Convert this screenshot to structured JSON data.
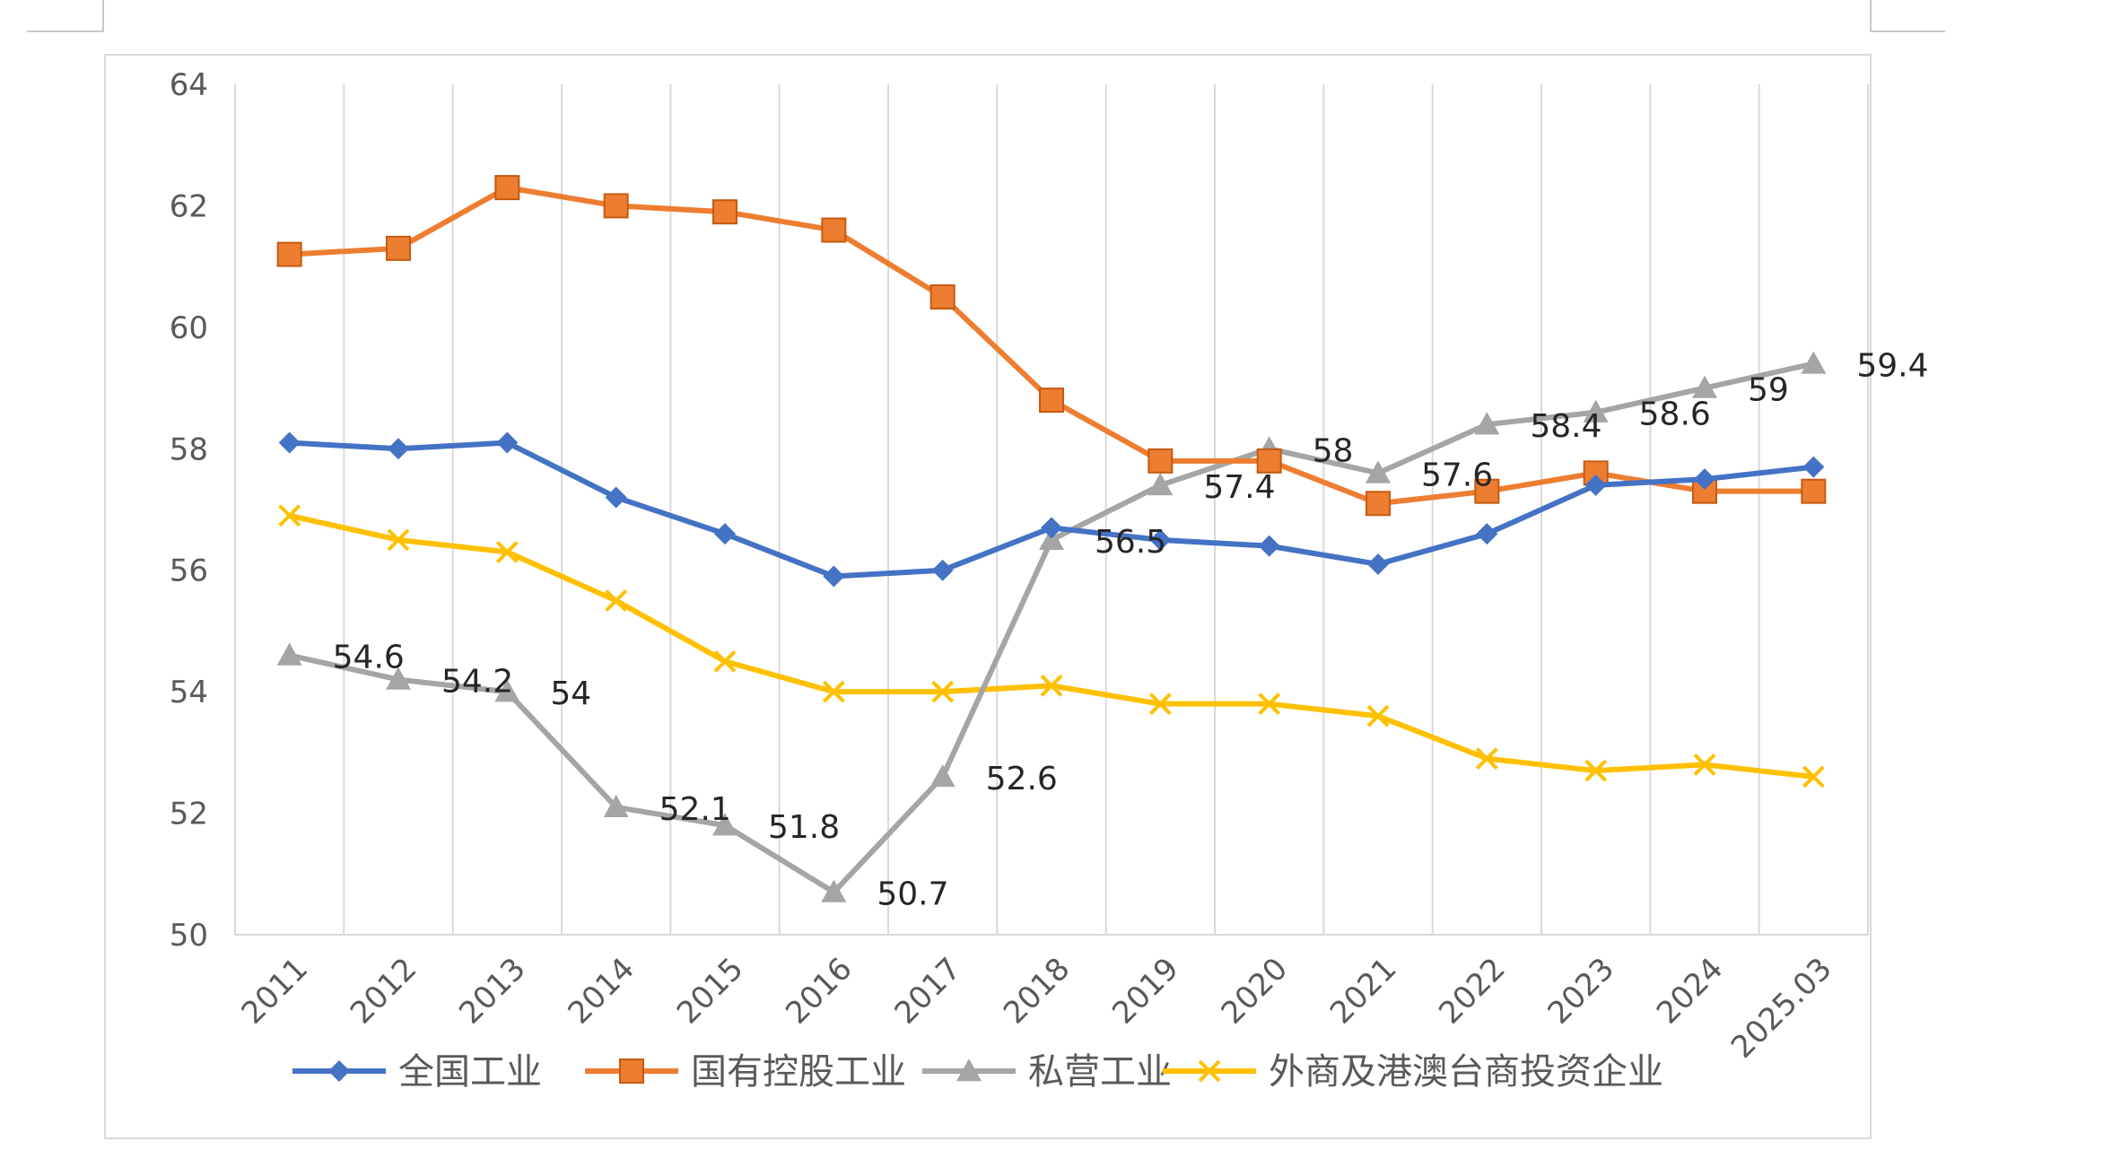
{
  "chart_data": {
    "type": "line",
    "title": "",
    "xlabel": "",
    "ylabel": "",
    "ylim": [
      50,
      64
    ],
    "yticks": [
      50,
      52,
      54,
      56,
      58,
      60,
      62,
      64
    ],
    "grid": "vertical",
    "legend_position": "bottom",
    "categories": [
      "2011",
      "2012",
      "2013",
      "2014",
      "2015",
      "2016",
      "2017",
      "2018",
      "2019",
      "2020",
      "2021",
      "2022",
      "2023",
      "2024",
      "2025.03"
    ],
    "series": [
      {
        "name": "全国工业",
        "color": "#4472C4",
        "marker": "diamond",
        "values": [
          58.1,
          58.0,
          58.1,
          57.2,
          56.6,
          55.9,
          56.0,
          56.7,
          56.5,
          56.4,
          56.1,
          56.6,
          57.4,
          57.5,
          57.7
        ]
      },
      {
        "name": "国有控股工业",
        "color": "#ED7D31",
        "marker": "square",
        "values": [
          61.2,
          61.3,
          62.3,
          62.0,
          61.9,
          61.6,
          60.5,
          58.8,
          57.8,
          57.8,
          57.1,
          57.3,
          57.6,
          57.3,
          57.3
        ]
      },
      {
        "name": "私营工业",
        "color": "#A5A5A5",
        "marker": "triangle",
        "values": [
          54.6,
          54.2,
          54.0,
          52.1,
          51.8,
          50.7,
          52.6,
          56.5,
          57.4,
          58.0,
          57.6,
          58.4,
          58.6,
          59.0,
          59.4
        ],
        "data_labels": [
          "54.6",
          "54.2",
          "54",
          "52.1",
          "51.8",
          "50.7",
          "52.6",
          "56.5",
          "57.4",
          "58",
          "57.6",
          "58.4",
          "58.6",
          "59",
          "59.4"
        ]
      },
      {
        "name": "外商及港澳台商投资企业",
        "color": "#FFC000",
        "marker": "x",
        "values": [
          56.9,
          56.5,
          56.3,
          55.5,
          54.5,
          54.0,
          54.0,
          54.1,
          53.8,
          53.8,
          53.6,
          52.9,
          52.7,
          52.8,
          52.6
        ]
      }
    ]
  }
}
